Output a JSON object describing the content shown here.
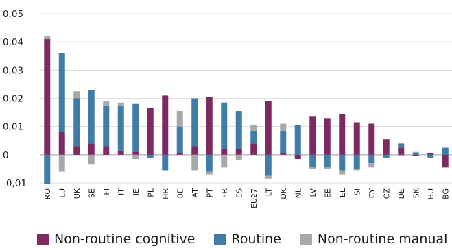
{
  "chart_data": {
    "type": "bar",
    "stacked": true,
    "title": "",
    "xlabel": "",
    "ylabel": "",
    "ylim": [
      -0.01,
      0.05
    ],
    "yticks": [
      -0.01,
      0,
      0.01,
      0.02,
      0.03,
      0.04,
      0.05
    ],
    "ytick_labels": [
      "-0,01",
      "0",
      "0,01",
      "0,02",
      "0,03",
      "0,04",
      "0,05"
    ],
    "grid": "horizontal",
    "legend_position": "bottom",
    "categories": [
      "RO",
      "LU",
      "UK",
      "SE",
      "FI",
      "IT",
      "IE",
      "PL",
      "HR",
      "BE",
      "AT",
      "PT",
      "FR",
      "ES",
      "EU27",
      "LT",
      "DK",
      "NL",
      "LV",
      "EE",
      "EL",
      "SI",
      "CY",
      "CZ",
      "DE",
      "SK",
      "HU",
      "BG"
    ],
    "series": [
      {
        "name": "Non-routine cognitive",
        "color": "#7e2a62",
        "values": [
          0.041,
          0.008,
          0.003,
          0.004,
          0.003,
          0.0015,
          0.001,
          0.0165,
          0.021,
          0.0005,
          0.003,
          0.0205,
          0.002,
          0.002,
          0.004,
          0.019,
          0.0005,
          -0.0015,
          0.0135,
          0.013,
          0.0145,
          0.0115,
          0.011,
          0.0055,
          0.0025,
          -0.0005,
          0.0005,
          -0.0045
        ]
      },
      {
        "name": "Routine",
        "color": "#3f7ca6",
        "values": [
          -0.0105,
          0.028,
          0.017,
          0.019,
          0.0145,
          0.016,
          0.017,
          -0.001,
          -0.0055,
          0.0095,
          0.017,
          -0.006,
          0.0165,
          0.0135,
          0.0045,
          -0.0075,
          0.008,
          0.0105,
          -0.0045,
          -0.0045,
          -0.0055,
          -0.005,
          -0.003,
          -0.001,
          0.0015,
          0.0005,
          -0.001,
          0.0025
        ]
      },
      {
        "name": "Non-routine manual",
        "color": "#a8a8a8",
        "values": [
          0.001,
          -0.006,
          0.0025,
          -0.0035,
          0.0015,
          0.001,
          -0.0015,
          0.0,
          0.0,
          0.0055,
          -0.0055,
          -0.001,
          -0.0045,
          -0.002,
          0.002,
          -0.001,
          0.0025,
          0.0,
          -0.0005,
          -0.0005,
          -0.0015,
          -0.0005,
          -0.0015,
          0.0,
          -0.0005,
          0.0005,
          0.0,
          0.0
        ]
      }
    ]
  }
}
